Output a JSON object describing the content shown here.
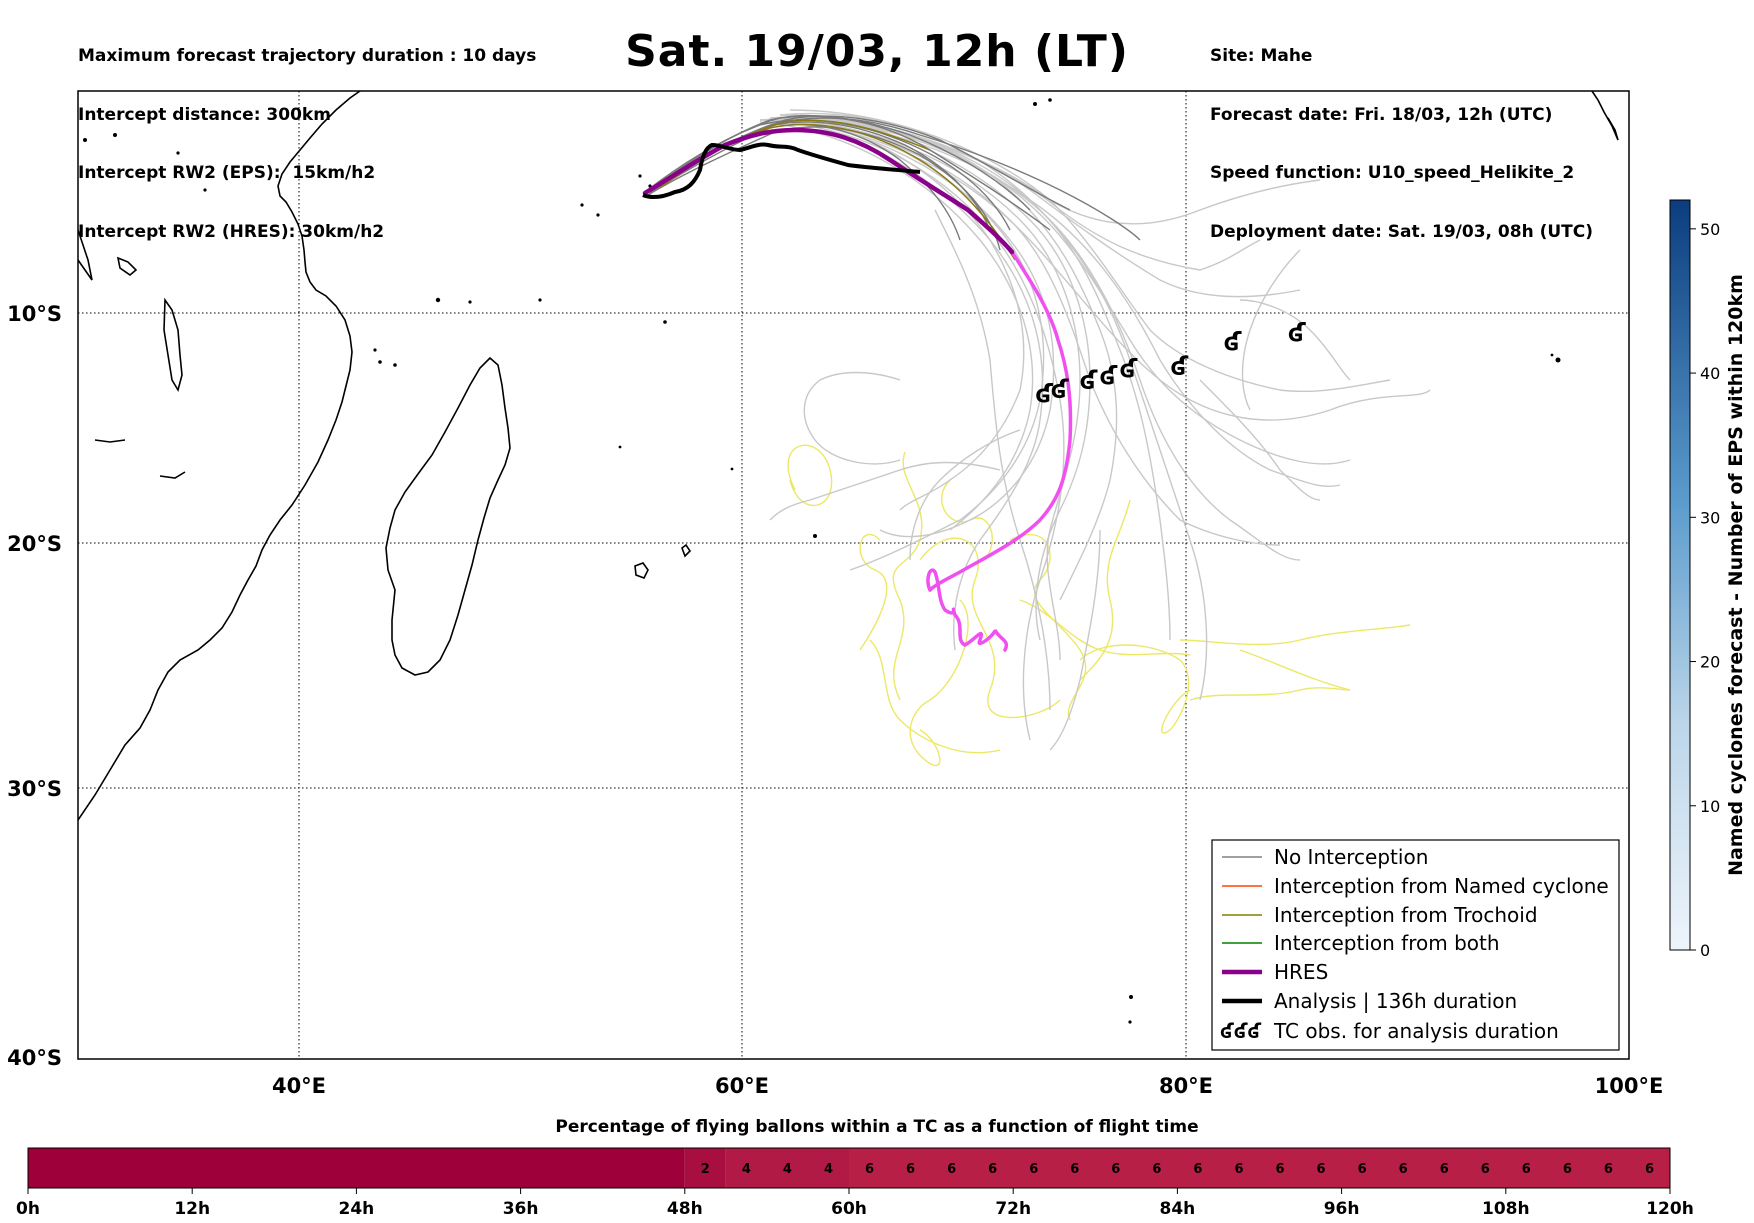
{
  "header_left": [
    "Maximum forecast trajectory duration : 10 days",
    "Intercept distance: 300km",
    "Intercept RW2 (EPS):  15km/h2",
    "Intercept RW2 (HRES): 30km/h2"
  ],
  "title": "Sat. 19/03, 12h (LT)",
  "header_right": [
    "Site: Mahe",
    "Forecast date: Fri. 18/03, 12h (UTC)",
    "Speed function: U10_speed_Helikite_2",
    "Deployment date: Sat. 19/03, 08h (UTC)"
  ],
  "map": {
    "lon_range": [
      30,
      100
    ],
    "lat_range": [
      -40,
      -0.2
    ],
    "lon_ticks": [
      {
        "v": 40,
        "label": "40°E"
      },
      {
        "v": 60,
        "label": "60°E"
      },
      {
        "v": 80,
        "label": "80°E"
      },
      {
        "v": 100,
        "label": "100°E"
      }
    ],
    "lat_ticks": [
      {
        "v": -10,
        "label": "10°S"
      },
      {
        "v": -20,
        "label": "20°S"
      },
      {
        "v": -30,
        "label": "30°S"
      },
      {
        "v": -40,
        "label": "40°S"
      }
    ],
    "gridlines": "dotted",
    "colors": {
      "eps": "#c8c8c8",
      "eps_dark": "#7a7a7a",
      "trochoid": "#8a7a10",
      "yellow": "#ece866",
      "hres": "#8b008b",
      "hres_later": "#f050f0",
      "analysis": "#000000"
    }
  },
  "legend": [
    {
      "label": "No Interception",
      "color": "#808080",
      "style": "thin"
    },
    {
      "label": "Interception from Named cyclone",
      "color": "#ff4500",
      "style": "thin"
    },
    {
      "label": "Interception from Trochoid",
      "color": "#808000",
      "style": "thin"
    },
    {
      "label": "Interception from both",
      "color": "#008000",
      "style": "thin"
    },
    {
      "label": "HRES",
      "color": "#8b008b",
      "style": "thick"
    },
    {
      "label": "Analysis | 136h duration",
      "color": "#000000",
      "style": "thick"
    },
    {
      "label": "TC obs. for analysis duration",
      "color": "#000000",
      "style": "symbol",
      "symbol": "ʛʛʛ"
    }
  ],
  "tc_obs": [
    {
      "lon": 73.6,
      "lat": -13.6
    },
    {
      "lon": 74.3,
      "lat": -13.4
    },
    {
      "lon": 75.6,
      "lat": -13.0
    },
    {
      "lon": 76.5,
      "lat": -12.8
    },
    {
      "lon": 77.4,
      "lat": -12.5
    },
    {
      "lon": 79.7,
      "lat": -12.4
    },
    {
      "lon": 82.1,
      "lat": -11.3
    },
    {
      "lon": 85.0,
      "lat": -10.9
    }
  ],
  "colorbar": {
    "label": "Named cyclones forecast - Number of EPS within 120km",
    "min": 0,
    "max": 52,
    "ticks": [
      {
        "v": 0,
        "label": "0"
      },
      {
        "v": 10,
        "label": "10"
      },
      {
        "v": 20,
        "label": "20"
      },
      {
        "v": 30,
        "label": "30"
      },
      {
        "v": 40,
        "label": "40"
      },
      {
        "v": 50,
        "label": "50"
      }
    ],
    "color_low": "#eef4fb",
    "color_high": "#0b3d7e"
  },
  "pct_bar": {
    "title": "Percentage of flying ballons within a TC as a function of flight time",
    "total_hours": 120,
    "cells": [
      {
        "from": 0,
        "to": 48,
        "value": "0",
        "show_label": false,
        "color": "#9e003a"
      },
      {
        "from": 48,
        "to": 51,
        "value": "2",
        "show_label": true,
        "color": "#a90e40"
      },
      {
        "from": 51,
        "to": 60,
        "value": "4",
        "show_label": true,
        "color": "#b11a44"
      },
      {
        "from": 60,
        "to": 120,
        "value": "6",
        "show_label": true,
        "color": "#b81f47"
      }
    ],
    "label_spacing_hours": 3,
    "ticks": [
      {
        "v": 0,
        "label": "0h"
      },
      {
        "v": 12,
        "label": "12h"
      },
      {
        "v": 24,
        "label": "24h"
      },
      {
        "v": 36,
        "label": "36h"
      },
      {
        "v": 48,
        "label": "48h"
      },
      {
        "v": 60,
        "label": "60h"
      },
      {
        "v": 72,
        "label": "72h"
      },
      {
        "v": 84,
        "label": "84h"
      },
      {
        "v": 96,
        "label": "96h"
      },
      {
        "v": 108,
        "label": "108h"
      },
      {
        "v": 120,
        "label": "120h"
      }
    ]
  }
}
